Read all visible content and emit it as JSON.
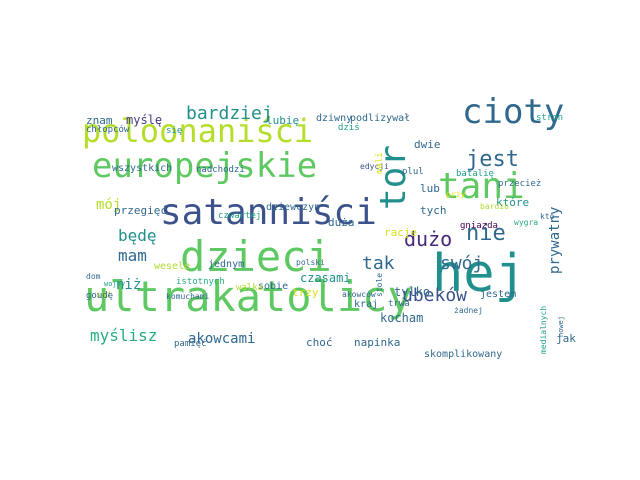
{
  "palette": {
    "teal": "#21908d",
    "green": "#5ec962",
    "lime": "#b5de2b",
    "navy": "#31688e",
    "blue": "#3b528b",
    "purple": "#443a83",
    "indigo": "#482878",
    "dark": "#440154",
    "cyan": "#1fa088",
    "sea": "#28ae80",
    "yellowgreen": "#addc30",
    "yellow": "#d8e219"
  },
  "words": [
    {
      "text": "hej",
      "color": "#21908d"
    },
    {
      "text": "ultrakatolicy",
      "color": "#5ec962"
    },
    {
      "text": "dzieci",
      "color": "#5ec962"
    },
    {
      "text": "satanniści",
      "color": "#3b528b"
    },
    {
      "text": "europejskie",
      "color": "#5ec962"
    },
    {
      "text": "poloonaniści",
      "color": "#b5de2b"
    },
    {
      "text": "tani",
      "color": "#5ec962"
    },
    {
      "text": "cioty",
      "color": "#31688e"
    },
    {
      "text": "tor",
      "color": "#21908d"
    },
    {
      "text": "jest",
      "color": "#31688e"
    },
    {
      "text": "nie",
      "color": "#31688e"
    },
    {
      "text": "dużo",
      "color": "#482878"
    },
    {
      "text": "bardziej",
      "color": "#21908d"
    },
    {
      "text": "ubeków",
      "color": "#3b528b"
    },
    {
      "text": "tak",
      "color": "#31688e"
    },
    {
      "text": "swój",
      "color": "#31688e"
    },
    {
      "text": "prywatny",
      "color": "#31688e"
    },
    {
      "text": "mam",
      "color": "#31688e"
    },
    {
      "text": "będę",
      "color": "#21908d"
    },
    {
      "text": "mój",
      "color": "#b5de2b"
    },
    {
      "text": "myślisz",
      "color": "#28ae80"
    },
    {
      "text": "akowcami",
      "color": "#31688e"
    },
    {
      "text": "niż",
      "color": "#21908d"
    },
    {
      "text": "czasami",
      "color": "#21908d"
    },
    {
      "text": "kocham",
      "color": "#31688e"
    },
    {
      "text": "tylko",
      "color": "#31688e"
    },
    {
      "text": "choć",
      "color": "#31688e"
    },
    {
      "text": "napinka",
      "color": "#31688e"
    },
    {
      "text": "racje",
      "color": "#d8e219"
    },
    {
      "text": "znam",
      "color": "#31688e"
    },
    {
      "text": "myślę",
      "color": "#443a83"
    },
    {
      "text": "się",
      "color": "#21908d"
    },
    {
      "text": "lubię",
      "color": "#21908d"
    },
    {
      "text": "dziwny",
      "color": "#31688e"
    },
    {
      "text": "podlizywał",
      "color": "#31688e"
    },
    {
      "text": "dziś",
      "color": "#1fa088"
    },
    {
      "text": "stron",
      "color": "#1fa088"
    },
    {
      "text": "chłopców",
      "color": "#31688e"
    },
    {
      "text": "wszystkich",
      "color": "#31688e"
    },
    {
      "text": "nadchodzi",
      "color": "#31688e"
    },
    {
      "text": "edycji",
      "color": "#3b528b"
    },
    {
      "text": "mali",
      "color": "#d8e219"
    },
    {
      "text": "dwie",
      "color": "#31688e"
    },
    {
      "text": "plul",
      "color": "#31688e"
    },
    {
      "text": "batalię",
      "color": "#1fa088"
    },
    {
      "text": "przecież",
      "color": "#31688e"
    },
    {
      "text": "kto",
      "color": "#31688e"
    },
    {
      "text": "przegięć",
      "color": "#31688e"
    },
    {
      "text": "dziewczyn",
      "color": "#31688e"
    },
    {
      "text": "czwartej",
      "color": "#1fa088"
    },
    {
      "text": "lub",
      "color": "#31688e"
    },
    {
      "text": "tych",
      "color": "#31688e"
    },
    {
      "text": "przy",
      "color": "#d8e219"
    },
    {
      "text": "które",
      "color": "#21908d"
    },
    {
      "text": "wygra",
      "color": "#28ae80"
    },
    {
      "text": "bardzo",
      "color": "#addc30"
    },
    {
      "text": "stole",
      "color": "#31688e"
    },
    {
      "text": "duża",
      "color": "#31688e"
    },
    {
      "text": "gniazda",
      "color": "#440154"
    },
    {
      "text": "sąd",
      "color": "#b5de2b"
    },
    {
      "text": "komuchami",
      "color": "#31688e"
    },
    {
      "text": "trzy",
      "color": "#d8e219"
    },
    {
      "text": "sobie",
      "color": "#31688e"
    },
    {
      "text": "jestem",
      "color": "#31688e"
    },
    {
      "text": "dom",
      "color": "#31688e"
    },
    {
      "text": "wesele",
      "color": "#addc30"
    },
    {
      "text": "jednym",
      "color": "#31688e"
    },
    {
      "text": "polski",
      "color": "#31688e"
    },
    {
      "text": "kraj",
      "color": "#31688e"
    },
    {
      "text": "wojny",
      "color": "#1fa088"
    },
    {
      "text": "goudę",
      "color": "#31688e"
    },
    {
      "text": "istotnych",
      "color": "#28ae80"
    },
    {
      "text": "walka",
      "color": "#addc30"
    },
    {
      "text": "akowców",
      "color": "#31688e"
    },
    {
      "text": "trwa",
      "color": "#31688e"
    },
    {
      "text": "żadnej",
      "color": "#31688e"
    },
    {
      "text": "medialnych",
      "color": "#1fa088"
    },
    {
      "text": "nowej",
      "color": "#31688e"
    },
    {
      "text": "pamięć",
      "color": "#31688e"
    },
    {
      "text": "skomplikowany",
      "color": "#31688e"
    },
    {
      "text": "jak",
      "color": "#31688e"
    }
  ]
}
